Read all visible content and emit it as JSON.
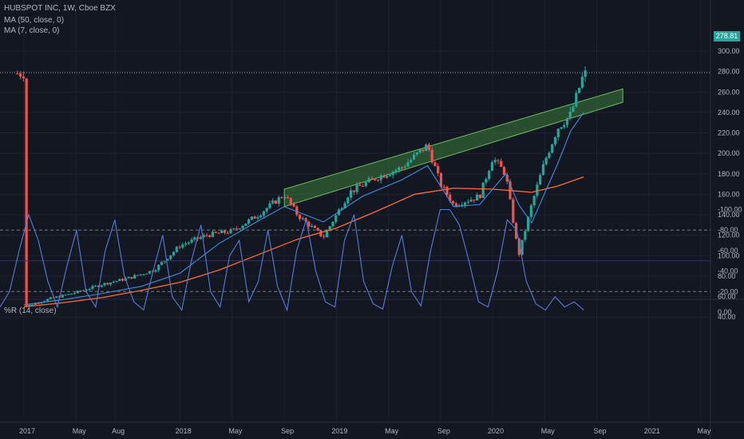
{
  "header": {
    "symbol_line": "HUBSPOT INC, 1W, Cboe BZX",
    "ma_slow_label": "MA (50, close, 0)",
    "ma_fast_label": "MA (7, close, 0)"
  },
  "price_tag": "278.81",
  "colors": {
    "background": "#131722",
    "up": "#26a69a",
    "down": "#ef5350",
    "ma_slow": "#ff6d2a",
    "ma_fast": "#3f8ee0",
    "channel_fill": "#3a7a3a",
    "channel_edge": "#6fbf5f",
    "williams_line": "#5b7bd5",
    "williams_band": "#2a1f4a"
  },
  "chart_data": [
    {
      "type": "candlestick",
      "title": "HUBSPOT INC, 1W, Cboe BZX",
      "ylim": [
        24,
        310
      ],
      "y_ticks": [
        "300.00",
        "280.00",
        "260.00",
        "240.00",
        "220.00",
        "200.00",
        "180.00",
        "160.00",
        "140.00",
        "120.00",
        "100.00",
        "80.00",
        "60.00",
        "40.00"
      ],
      "y_tick_values": [
        300,
        280,
        260,
        240,
        220,
        200,
        180,
        160,
        140,
        120,
        100,
        80,
        60,
        40
      ],
      "x_ticks": [
        "2017",
        "May",
        "Aug",
        "2018",
        "May",
        "Sep",
        "2019",
        "May",
        "Sep",
        "2020",
        "May",
        "Sep",
        "2021",
        "May"
      ],
      "x_tick_dates": [
        "2017-01",
        "2017-05",
        "2017-08",
        "2018-01",
        "2018-05",
        "2018-09",
        "2019-01",
        "2019-05",
        "2019-09",
        "2020-01",
        "2020-05",
        "2020-09",
        "2021-01",
        "2021-05"
      ],
      "last_price": 278.81,
      "series": [
        {
          "name": "MA (50, close, 0)",
          "type": "line",
          "x": [
            "2017-01",
            "2017-04",
            "2017-07",
            "2017-10",
            "2018-01",
            "2018-04",
            "2018-07",
            "2018-10",
            "2019-01",
            "2019-04",
            "2019-07",
            "2019-10",
            "2020-01",
            "2020-04",
            "2020-06",
            "2020-08"
          ],
          "values": [
            50,
            54,
            59,
            66,
            74,
            86,
            101,
            116,
            127,
            143,
            160,
            166,
            165,
            162,
            168,
            177
          ]
        },
        {
          "name": "MA (7, close, 0)",
          "type": "line",
          "x": [
            "2017-01",
            "2017-04",
            "2017-07",
            "2017-10",
            "2018-01",
            "2018-04",
            "2018-07",
            "2018-09",
            "2018-12",
            "2019-03",
            "2019-06",
            "2019-08",
            "2019-10",
            "2019-12",
            "2020-02",
            "2020-03",
            "2020-04",
            "2020-06",
            "2020-07",
            "2020-08"
          ],
          "values": [
            52,
            57,
            63,
            70,
            83,
            112,
            134,
            148,
            133,
            158,
            174,
            188,
            148,
            150,
            180,
            150,
            132,
            190,
            222,
            240
          ]
        },
        {
          "name": "price",
          "type": "ohlc_approx",
          "x": [
            "2017-01",
            "2017-03",
            "2017-05",
            "2017-07",
            "2017-09",
            "2017-11",
            "2018-01",
            "2018-03",
            "2018-05",
            "2018-07",
            "2018-09",
            "2018-10",
            "2018-12",
            "2019-02",
            "2019-04",
            "2019-06",
            "2019-08",
            "2019-09",
            "2019-10",
            "2019-12",
            "2020-01",
            "2020-02",
            "2020-03",
            "2020-04",
            "2020-05",
            "2020-06",
            "2020-07",
            "2020-08"
          ],
          "values": [
            50,
            58,
            64,
            72,
            78,
            86,
            110,
            120,
            124,
            140,
            160,
            140,
            118,
            162,
            176,
            186,
            208,
            170,
            150,
            158,
            196,
            180,
            100,
            150,
            192,
            225,
            238,
            278
          ]
        }
      ],
      "channel": {
        "start": "2018-09",
        "end": "2020-11",
        "lower_start": 148,
        "upper_start": 165,
        "lower_end": 250,
        "upper_end": 263
      }
    },
    {
      "type": "line",
      "title": "%R (14, close)",
      "ylim": [
        -105,
        8
      ],
      "y_ticks": [
        "0.00",
        "-20.00",
        "-40.00",
        "-60.00",
        "-80.00",
        "-100.00"
      ],
      "y_tick_values": [
        0,
        -20,
        -40,
        -60,
        -80,
        -100
      ],
      "bands": {
        "upper": -20,
        "lower": -80
      },
      "series": [
        {
          "name": "%R (14, close)",
          "values": [
            -5,
            -20,
            -60,
            -95,
            -70,
            -30,
            -5,
            -45,
            -80,
            -20,
            -5,
            -60,
            -90,
            -35,
            -10,
            -2,
            -40,
            -75,
            -15,
            -2,
            -50,
            -85,
            -20,
            -5,
            -55,
            -70,
            -10,
            -30,
            -80,
            -25,
            -2,
            -60,
            -90,
            -40,
            -10,
            -5,
            -70,
            -95,
            -30,
            -8,
            -3,
            -45,
            -75,
            -20,
            -6,
            -60,
            -100,
            -100,
            -85,
            -50,
            -10,
            -5,
            -40,
            -90,
            -80,
            -30,
            -8,
            -2,
            -15,
            -5,
            -10,
            -2
          ]
        }
      ]
    }
  ]
}
